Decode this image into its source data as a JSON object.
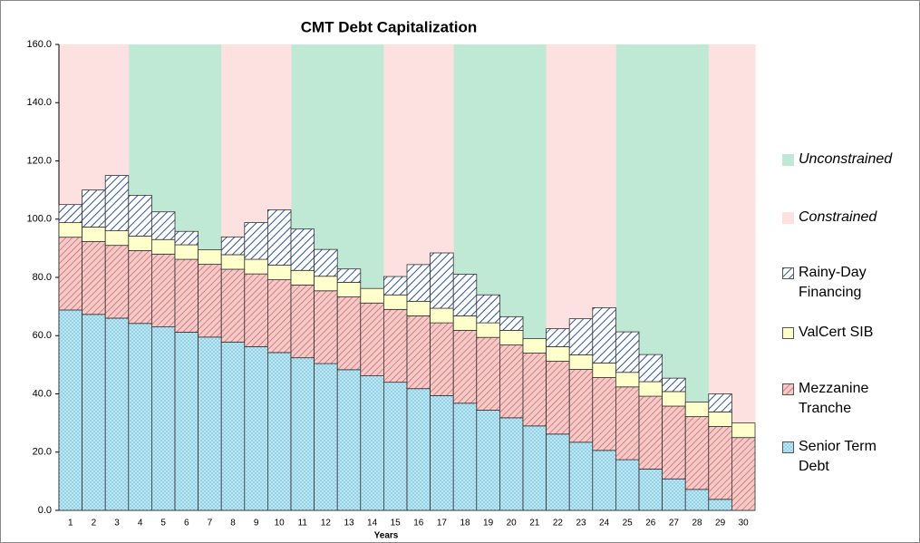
{
  "chart_data": {
    "type": "stacked-bar",
    "title": "CMT Debt Capitalization",
    "x_label": "Years",
    "categories": [
      "1",
      "2",
      "3",
      "4",
      "5",
      "6",
      "7",
      "8",
      "9",
      "10",
      "11",
      "12",
      "13",
      "14",
      "15",
      "16",
      "17",
      "18",
      "19",
      "20",
      "21",
      "22",
      "23",
      "24",
      "25",
      "26",
      "27",
      "28",
      "29",
      "30"
    ],
    "ylim": [
      0,
      160
    ],
    "yticks": [
      {
        "value": 0,
        "label": "0.0"
      },
      {
        "value": 20,
        "label": "20.0"
      },
      {
        "value": 40,
        "label": "40.0"
      },
      {
        "value": 60,
        "label": "60.0"
      },
      {
        "value": 80,
        "label": "80.0"
      },
      {
        "value": 100,
        "label": "100.0"
      },
      {
        "value": 120,
        "label": "120.0"
      },
      {
        "value": 140,
        "label": "140.0"
      },
      {
        "value": 160,
        "label": "160.0"
      }
    ],
    "background_series": [
      {
        "name": "Unconstrained",
        "color": "#bfe9d4",
        "values": [
          null,
          null,
          null,
          160,
          160,
          160,
          160,
          null,
          null,
          null,
          160,
          160,
          160,
          160,
          null,
          null,
          null,
          160,
          160,
          160,
          160,
          null,
          null,
          null,
          160,
          160,
          160,
          160,
          null,
          null
        ]
      },
      {
        "name": "Constrained",
        "color": "#fde0e0",
        "values": [
          160,
          160,
          160,
          null,
          null,
          null,
          null,
          160,
          160,
          160,
          null,
          null,
          null,
          null,
          160,
          160,
          160,
          null,
          null,
          null,
          null,
          160,
          160,
          160,
          null,
          null,
          null,
          null,
          160,
          160
        ]
      }
    ],
    "series": [
      {
        "name": "Senior Term Debt",
        "color": "#b8e6f3",
        "values": [
          68.8,
          67.3,
          66,
          64.2,
          63,
          61.2,
          59.5,
          57.8,
          56.2,
          54.2,
          52.4,
          50.4,
          48.3,
          46.2,
          44,
          41.8,
          39.4,
          36.8,
          34.4,
          31.8,
          29,
          26.2,
          23.4,
          20.6,
          17.4,
          14.2,
          10.8,
          7.2,
          3.8,
          0
        ]
      },
      {
        "name": "Mezzanine Tranche",
        "color": "#f6c9c9",
        "values": [
          25,
          25,
          25,
          25,
          25,
          25,
          25,
          25,
          25,
          25,
          25,
          25,
          25,
          25,
          25,
          25,
          25,
          25,
          25,
          25,
          25,
          25,
          25,
          25,
          25,
          25,
          25,
          25,
          25,
          25
        ]
      },
      {
        "name": "ValCert SIB",
        "color": "#ffffcc",
        "values": [
          5,
          5,
          5,
          5,
          5,
          5,
          5,
          5,
          5,
          5,
          5,
          5,
          5,
          5,
          5,
          5,
          5,
          5,
          5,
          5,
          5,
          5,
          5,
          5,
          5,
          5,
          5,
          5,
          5,
          5
        ]
      },
      {
        "name": "Rainy-Day Financing",
        "color": "#ffffff",
        "values": [
          6.2,
          12.7,
          19,
          14,
          9.5,
          4.6,
          0,
          6.1,
          12.6,
          19,
          14.2,
          9.2,
          4.6,
          0,
          6.3,
          12.6,
          19,
          14.3,
          9.6,
          4.7,
          0,
          6.2,
          12.4,
          19,
          13.9,
          9.3,
          4.6,
          0,
          6.2,
          0
        ]
      }
    ]
  }
}
